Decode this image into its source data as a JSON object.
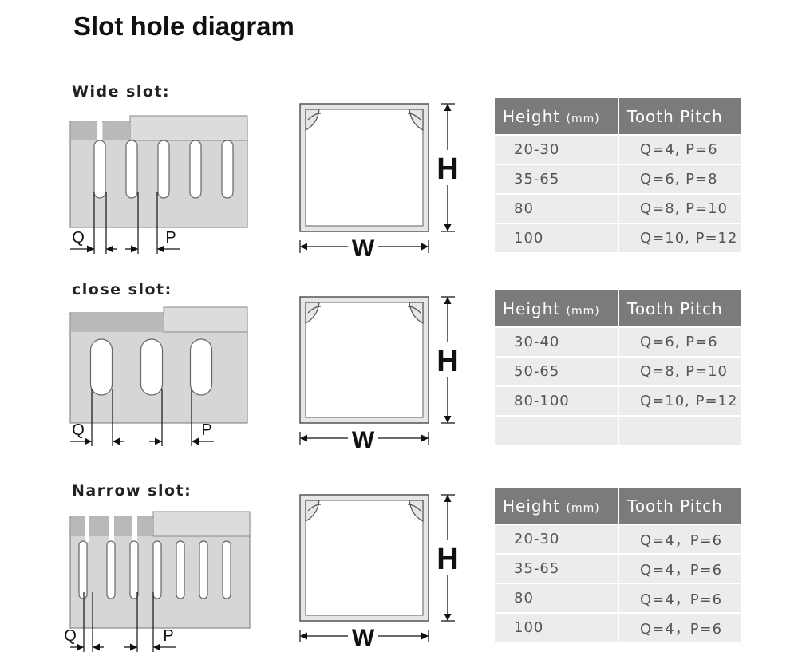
{
  "title": "Slot hole diagram",
  "dimension_labels": {
    "q": "Q",
    "p": "P",
    "h": "H",
    "w": "W"
  },
  "sections": [
    {
      "label": "Wide slot:",
      "table": {
        "headers": [
          "Height",
          "(mm)",
          "Tooth Pitch"
        ],
        "rows": [
          [
            "20-30",
            "Q=4, P=6"
          ],
          [
            "35-65",
            "Q=6, P=8"
          ],
          [
            "80",
            "Q=8, P=10"
          ],
          [
            "100",
            "Q=10, P=12"
          ]
        ]
      }
    },
    {
      "label": "close slot:",
      "table": {
        "headers": [
          "Height",
          "(mm)",
          "Tooth Pitch"
        ],
        "rows": [
          [
            "30-40",
            "Q=6, P=6"
          ],
          [
            "50-65",
            "Q=8, P=10"
          ],
          [
            "80-100",
            "Q=10, P=12"
          ],
          [
            "",
            ""
          ]
        ]
      }
    },
    {
      "label": "Narrow slot:",
      "table": {
        "headers": [
          "Height",
          "(mm)",
          "Tooth Pitch"
        ],
        "rows": [
          [
            "20-30",
            "Q=4，P=6"
          ],
          [
            "35-65",
            "Q=4，P=6"
          ],
          [
            "80",
            "Q=4，P=6"
          ],
          [
            "100",
            "Q=4，P=6"
          ]
        ]
      }
    }
  ],
  "colors": {
    "header_bg": "#7b7b7b",
    "row_bg": "#ececec",
    "panel": "#d6d6d6",
    "panel_dark": "#b9b9b9"
  }
}
